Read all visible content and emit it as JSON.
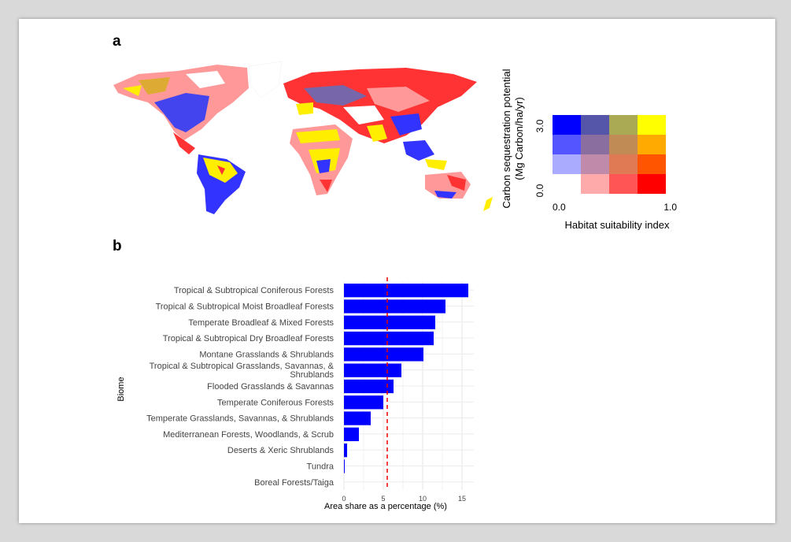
{
  "panel_a_label": "a",
  "panel_b_label": "b",
  "legend": {
    "y_title_line1": "Carbon sequestration potential",
    "y_title_line2": "(Mg Carbon/ha/yr)",
    "y_max_label": "3.0",
    "y_min_label": "0.0",
    "x_min_label": "0.0",
    "x_max_label": "1.0",
    "x_title": "Habitat suitability index",
    "grid_colors": [
      [
        "#0000ff",
        "#5555aa",
        "#aaaa55",
        "#ffff00"
      ],
      [
        "#5555ff",
        "#8b6ea0",
        "#c08b55",
        "#ffaa00"
      ],
      [
        "#aaaaff",
        "#c08baa",
        "#e07a55",
        "#ff5500"
      ],
      [
        null,
        "#ffaaaa",
        "#ff5555",
        "#ff0000"
      ]
    ]
  },
  "map": {
    "description_colors": {
      "blue": "#3333ff",
      "red": "#ff3333",
      "yellow": "#ffee00",
      "pink": "#ffaaaa",
      "orange": "#dd9922",
      "purple": "#9070a0"
    }
  },
  "chart_data": {
    "type": "bar",
    "orientation": "horizontal",
    "categories": [
      "Tropical & Subtropical Coniferous Forests",
      "Tropical & Subtropical Moist Broadleaf Forests",
      "Temperate Broadleaf & Mixed Forests",
      "Tropical & Subtropical Dry Broadleaf Forests",
      "Montane Grasslands & Shrublands",
      "Tropical & Subtropical Grasslands, Savannas, & Shrublands",
      "Flooded Grasslands & Savannas",
      "Temperate Coniferous Forests",
      "Temperate Grasslands, Savannas, & Shrublands",
      "Mediterranean Forests, Woodlands, & Scrub",
      "Deserts & Xeric Shrublands",
      "Tundra",
      "Boreal Forests/Taiga"
    ],
    "category_lines": [
      [
        "Tropical & Subtropical Coniferous Forests"
      ],
      [
        "Tropical & Subtropical Moist Broadleaf Forests"
      ],
      [
        "Temperate Broadleaf & Mixed Forests"
      ],
      [
        "Tropical & Subtropical Dry Broadleaf Forests"
      ],
      [
        "Montane Grasslands & Shrublands"
      ],
      [
        "Tropical & Subtropical Grasslands, Savannas, &",
        "Shrublands"
      ],
      [
        "Flooded Grasslands & Savannas"
      ],
      [
        "Temperate Coniferous Forests"
      ],
      [
        "Temperate Grasslands, Savannas, & Shrublands"
      ],
      [
        "Mediterranean Forests, Woodlands, & Scrub"
      ],
      [
        "Deserts & Xeric Shrublands"
      ],
      [
        "Tundra"
      ],
      [
        "Boreal Forests/Taiga"
      ]
    ],
    "values": [
      15.8,
      12.9,
      11.6,
      11.4,
      10.1,
      7.3,
      6.3,
      5.0,
      3.4,
      1.9,
      0.4,
      0.1,
      0.0
    ],
    "reference_line": 5.5,
    "xlim": [
      0,
      16.5
    ],
    "xticks": [
      0,
      5,
      10,
      15
    ],
    "xlabel": "Area share as a percentage (%)",
    "ylabel": "Biome",
    "bar_color": "#0000ff",
    "reference_color": "#ee0000",
    "grid": true
  }
}
